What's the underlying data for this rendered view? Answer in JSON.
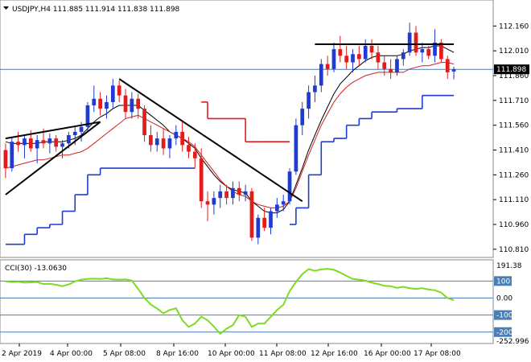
{
  "header": {
    "symbol_line": "USDJPY,H4  111.885 111.914 111.838 111.898"
  },
  "colors": {
    "bull": "#1f3bd1",
    "bear": "#e21b1b",
    "ma_fast": "#000000",
    "ma_slow": "#d11f1f",
    "stop_up": "#1f3bd1",
    "stop_down": "#e21b1b",
    "cci": "#7ddc1f",
    "level_line": "#4a7fb5",
    "grid": "#c0c0c0",
    "price_box_bg": "#000000",
    "price_box_fg": "#ffffff"
  },
  "chart_data": [
    {
      "type": "candlestick",
      "title": "USDJPY,H4",
      "ohlc_readout": {
        "open": 111.885,
        "high": 111.914,
        "low": 111.838,
        "close": 111.898
      },
      "current_price_label": "111.898",
      "y_ticks": [
        "112.160",
        "112.010",
        "111.860",
        "111.710",
        "111.560",
        "111.410",
        "111.260",
        "111.110",
        "110.960",
        "110.810"
      ],
      "y_range": [
        110.78,
        112.22
      ],
      "x_ticks": [
        "2 Apr 2019",
        "4 Apr 00:00",
        "5 Apr 08:00",
        "8 Apr 16:00",
        "10 Apr 00:00",
        "11 Apr 08:00",
        "12 Apr 16:00",
        "16 Apr 00:00",
        "17 Apr 08:00"
      ],
      "candles": [
        [
          111.41,
          111.45,
          111.24,
          111.3
        ],
        [
          111.3,
          111.49,
          111.28,
          111.46
        ],
        [
          111.46,
          111.52,
          111.4,
          111.44
        ],
        [
          111.44,
          111.5,
          111.36,
          111.48
        ],
        [
          111.48,
          111.53,
          111.4,
          111.42
        ],
        [
          111.42,
          111.5,
          111.33,
          111.47
        ],
        [
          111.47,
          111.54,
          111.42,
          111.45
        ],
        [
          111.45,
          111.51,
          111.39,
          111.48
        ],
        [
          111.48,
          111.5,
          111.4,
          111.43
        ],
        [
          111.43,
          111.47,
          111.36,
          111.45
        ],
        [
          111.45,
          111.52,
          111.42,
          111.5
        ],
        [
          111.5,
          111.55,
          111.44,
          111.52
        ],
        [
          111.52,
          111.58,
          111.46,
          111.55
        ],
        [
          111.55,
          111.7,
          111.52,
          111.68
        ],
        [
          111.68,
          111.8,
          111.64,
          111.72
        ],
        [
          111.72,
          111.76,
          111.62,
          111.66
        ],
        [
          111.66,
          111.74,
          111.6,
          111.7
        ],
        [
          111.7,
          111.84,
          111.66,
          111.8
        ],
        [
          111.8,
          111.83,
          111.7,
          111.74
        ],
        [
          111.74,
          111.78,
          111.6,
          111.64
        ],
        [
          111.64,
          111.76,
          111.6,
          111.72
        ],
        [
          111.72,
          111.75,
          111.6,
          111.66
        ],
        [
          111.66,
          111.68,
          111.46,
          111.5
        ],
        [
          111.5,
          111.56,
          111.4,
          111.44
        ],
        [
          111.44,
          111.52,
          111.4,
          111.48
        ],
        [
          111.48,
          111.54,
          111.38,
          111.42
        ],
        [
          111.42,
          111.5,
          111.36,
          111.48
        ],
        [
          111.48,
          111.56,
          111.44,
          111.52
        ],
        [
          111.52,
          111.58,
          111.4,
          111.44
        ],
        [
          111.44,
          111.49,
          111.36,
          111.4
        ],
        [
          111.4,
          111.45,
          111.3,
          111.36
        ],
        [
          111.36,
          111.42,
          111.06,
          111.1
        ],
        [
          111.1,
          111.16,
          110.98,
          111.08
        ],
        [
          111.08,
          111.16,
          111.02,
          111.12
        ],
        [
          111.12,
          111.2,
          111.06,
          111.16
        ],
        [
          111.16,
          111.2,
          111.08,
          111.12
        ],
        [
          111.12,
          111.22,
          111.08,
          111.18
        ],
        [
          111.18,
          111.22,
          111.1,
          111.14
        ],
        [
          111.14,
          111.2,
          111.1,
          111.16
        ],
        [
          111.16,
          111.18,
          110.86,
          110.88
        ],
        [
          110.88,
          111.02,
          110.84,
          111.0
        ],
        [
          111.0,
          111.06,
          110.92,
          110.94
        ],
        [
          110.94,
          111.06,
          110.9,
          111.04
        ],
        [
          111.04,
          111.12,
          111.0,
          111.08
        ],
        [
          111.08,
          111.14,
          111.04,
          111.1
        ],
        [
          111.1,
          111.3,
          111.08,
          111.28
        ],
        [
          111.28,
          111.6,
          111.26,
          111.56
        ],
        [
          111.56,
          111.7,
          111.5,
          111.66
        ],
        [
          111.66,
          111.8,
          111.6,
          111.76
        ],
        [
          111.76,
          111.86,
          111.7,
          111.8
        ],
        [
          111.8,
          111.96,
          111.76,
          111.93
        ],
        [
          111.93,
          111.98,
          111.86,
          111.9
        ],
        [
          111.9,
          112.06,
          111.88,
          112.02
        ],
        [
          112.02,
          112.1,
          111.94,
          111.98
        ],
        [
          111.98,
          112.04,
          111.9,
          111.94
        ],
        [
          111.94,
          112.02,
          111.88,
          111.99
        ],
        [
          111.99,
          112.04,
          111.92,
          111.96
        ],
        [
          111.96,
          112.08,
          111.94,
          112.04
        ],
        [
          112.04,
          112.08,
          111.96,
          112.0
        ],
        [
          112.0,
          112.04,
          111.9,
          111.94
        ],
        [
          111.94,
          111.98,
          111.86,
          111.9
        ],
        [
          111.9,
          111.96,
          111.84,
          111.88
        ],
        [
          111.88,
          111.98,
          111.86,
          111.96
        ],
        [
          111.96,
          112.02,
          111.92,
          112.0
        ],
        [
          112.0,
          112.18,
          111.98,
          112.12
        ],
        [
          112.12,
          112.16,
          111.98,
          112.0
        ],
        [
          112.0,
          112.06,
          111.94,
          112.02
        ],
        [
          112.02,
          112.04,
          111.96,
          111.98
        ],
        [
          111.98,
          112.14,
          111.94,
          112.06
        ],
        [
          112.06,
          112.08,
          111.94,
          111.96
        ],
        [
          111.96,
          111.98,
          111.84,
          111.88
        ],
        [
          111.885,
          111.914,
          111.838,
          111.898
        ]
      ],
      "moving_averages": [
        {
          "color_key": "ma_fast",
          "values": [
            111.46,
            111.45,
            111.45,
            111.45,
            111.45,
            111.45,
            111.46,
            111.46,
            111.46,
            111.46,
            111.47,
            111.48,
            111.5,
            111.54,
            111.58,
            111.61,
            111.63,
            111.66,
            111.68,
            111.68,
            111.68,
            111.68,
            111.65,
            111.62,
            111.59,
            111.56,
            111.52,
            111.5,
            111.48,
            111.45,
            111.42,
            111.36,
            111.31,
            111.26,
            111.22,
            111.19,
            111.17,
            111.16,
            111.15,
            111.1,
            111.07,
            111.04,
            111.03,
            111.03,
            111.05,
            111.1,
            111.2,
            111.3,
            111.41,
            111.5,
            111.59,
            111.67,
            111.75,
            111.81,
            111.85,
            111.89,
            111.92,
            111.95,
            111.97,
            111.98,
            111.98,
            111.98,
            111.98,
            111.99,
            112.01,
            112.02,
            112.03,
            112.03,
            112.04,
            112.04,
            112.02,
            112.0
          ]
        },
        {
          "color_key": "ma_slow",
          "values": [
            111.3,
            111.31,
            111.32,
            111.33,
            111.34,
            111.35,
            111.35,
            111.36,
            111.37,
            111.38,
            111.38,
            111.39,
            111.4,
            111.42,
            111.45,
            111.48,
            111.51,
            111.54,
            111.57,
            111.6,
            111.61,
            111.62,
            111.6,
            111.58,
            111.56,
            111.54,
            111.52,
            111.5,
            111.48,
            111.46,
            111.43,
            111.38,
            111.33,
            111.28,
            111.23,
            111.19,
            111.16,
            111.14,
            111.13,
            111.1,
            111.08,
            111.07,
            111.06,
            111.06,
            111.07,
            111.1,
            111.18,
            111.28,
            111.38,
            111.47,
            111.56,
            111.63,
            111.7,
            111.75,
            111.79,
            111.82,
            111.84,
            111.86,
            111.87,
            111.88,
            111.88,
            111.88,
            111.88,
            111.88,
            111.9,
            111.91,
            111.92,
            111.92,
            111.93,
            111.94,
            111.94,
            111.93
          ]
        }
      ],
      "stop_line_up": [
        {
          "from": 0,
          "to": 3,
          "value": 110.84
        },
        {
          "from": 3,
          "to": 5,
          "value": 110.9
        },
        {
          "from": 5,
          "to": 7,
          "value": 110.94
        },
        {
          "from": 7,
          "to": 9,
          "value": 110.96
        },
        {
          "from": 9,
          "to": 11,
          "value": 111.04
        },
        {
          "from": 11,
          "to": 13,
          "value": 111.14
        },
        {
          "from": 13,
          "to": 15,
          "value": 111.26
        },
        {
          "from": 15,
          "to": 25,
          "value": 111.3
        },
        {
          "from": 25,
          "to": 30,
          "value": 111.3
        },
        {
          "from": 45,
          "to": 46,
          "value": 110.96
        },
        {
          "from": 46,
          "to": 48,
          "value": 111.06
        },
        {
          "from": 48,
          "to": 50,
          "value": 111.26
        },
        {
          "from": 50,
          "to": 52,
          "value": 111.46
        },
        {
          "from": 52,
          "to": 54,
          "value": 111.48
        },
        {
          "from": 54,
          "to": 56,
          "value": 111.56
        },
        {
          "from": 56,
          "to": 58,
          "value": 111.6
        },
        {
          "from": 58,
          "to": 62,
          "value": 111.64
        },
        {
          "from": 62,
          "to": 66,
          "value": 111.66
        },
        {
          "from": 66,
          "to": 68,
          "value": 111.74
        },
        {
          "from": 68,
          "to": 71,
          "value": 111.74
        }
      ],
      "stop_line_down": [
        {
          "from": 31,
          "to": 32,
          "value": 111.7
        },
        {
          "from": 32,
          "to": 38,
          "value": 111.6
        },
        {
          "from": 38,
          "to": 40,
          "value": 111.46
        },
        {
          "from": 40,
          "to": 45,
          "value": 111.46
        }
      ],
      "trendlines": [
        {
          "x1": 0,
          "y1": 111.48,
          "x2": 15,
          "y2": 111.58
        },
        {
          "x1": 0,
          "y1": 111.14,
          "x2": 15,
          "y2": 111.58
        },
        {
          "x1": 18,
          "y1": 111.84,
          "x2": 47,
          "y2": 111.1
        },
        {
          "x1": 49,
          "y1": 112.05,
          "x2": 71,
          "y2": 112.05
        }
      ]
    },
    {
      "type": "line",
      "title": "CCI(30) -13.0630",
      "series": [
        {
          "name": "CCI(30)",
          "values": [
            97,
            94,
            96,
            90,
            92,
            94,
            82,
            84,
            78,
            70,
            80,
            98,
            108,
            112,
            114,
            112,
            116,
            110,
            108,
            110,
            102,
            54,
            0,
            -38,
            -62,
            -90,
            -70,
            -60,
            -130,
            -170,
            -150,
            -110,
            -130,
            -168,
            -210,
            -180,
            -160,
            -100,
            -110,
            -170,
            -150,
            -150,
            -110,
            -70,
            -40,
            40,
            95,
            140,
            170,
            160,
            168,
            172,
            166,
            150,
            130,
            112,
            108,
            102,
            90,
            82,
            72,
            70,
            60,
            66,
            58,
            54,
            58,
            50,
            46,
            32,
            0,
            -13.063
          ]
        }
      ],
      "y_ticks": [
        "191.38",
        "100",
        "0.00",
        "-100",
        "-200",
        "-252.996"
      ],
      "levels": [
        100,
        0,
        -100,
        -200
      ],
      "y_range": [
        -252.996,
        191.38
      ]
    }
  ]
}
